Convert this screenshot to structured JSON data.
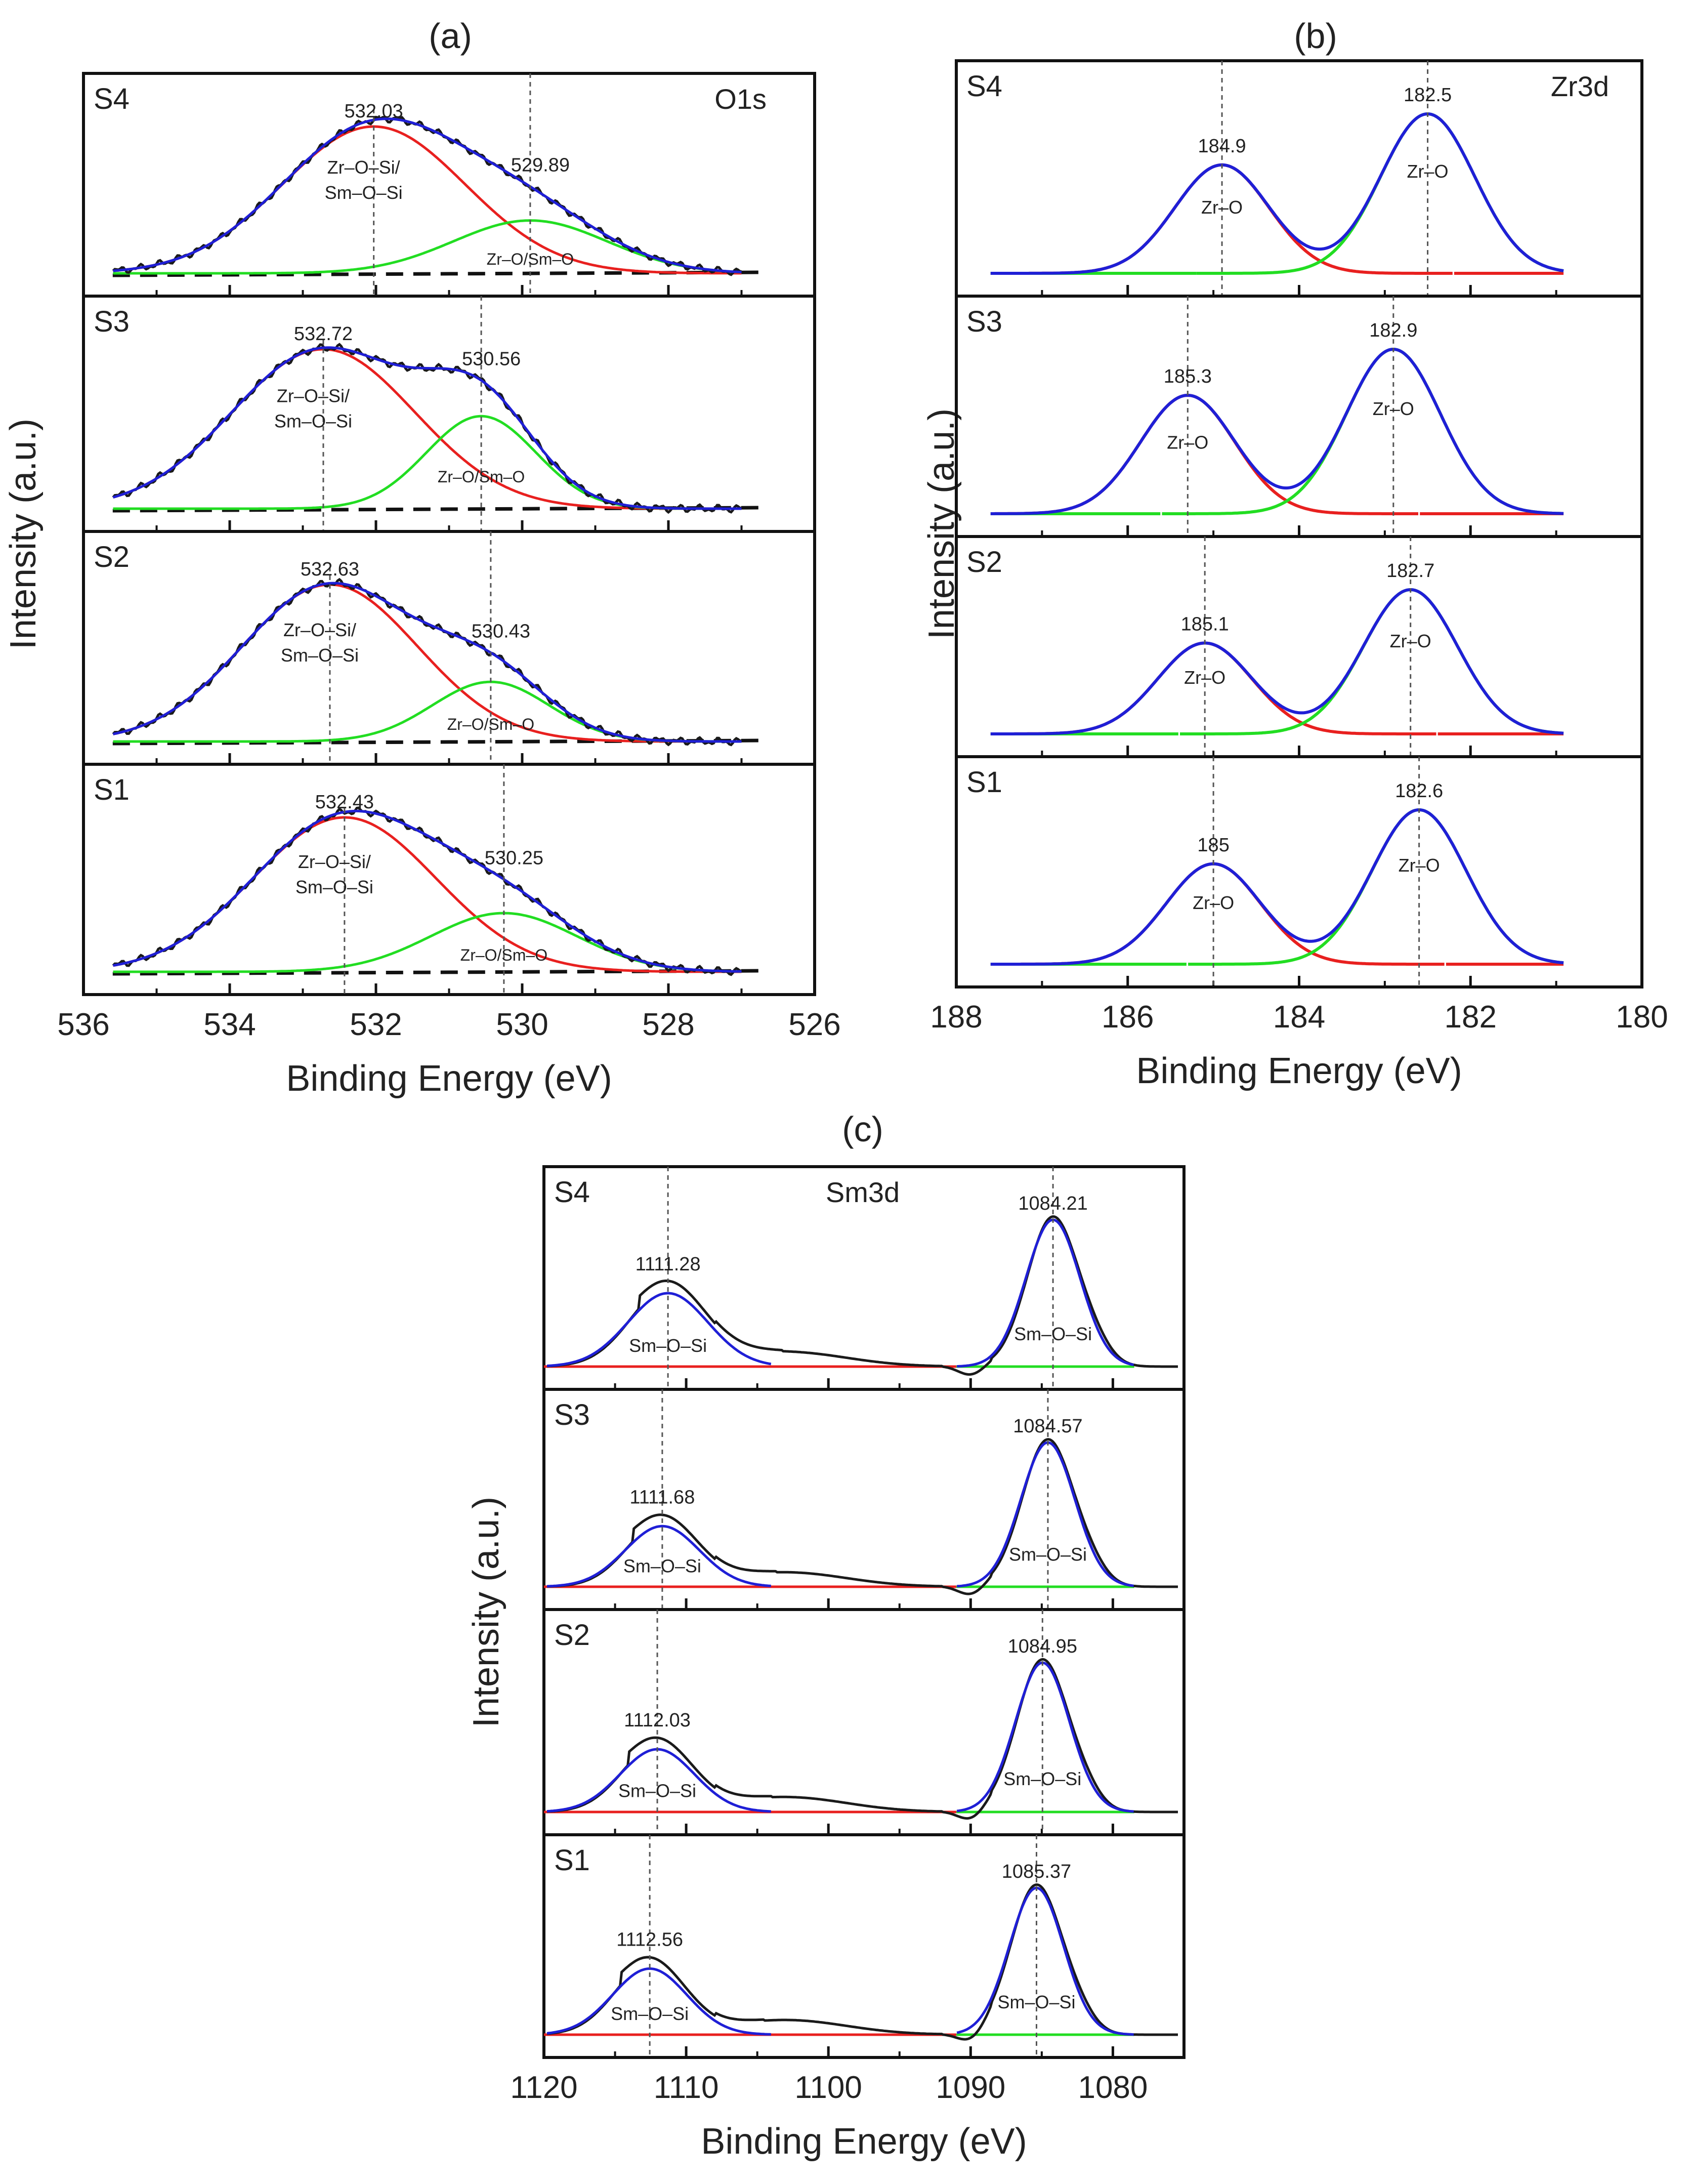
{
  "chart_data": [
    {
      "id": "a",
      "type": "line",
      "panel_label": "(a)",
      "element": "O1s",
      "xlabel": "Binding Energy (eV)",
      "ylabel": "Intensity (a.u.)",
      "xlim": [
        536,
        526
      ],
      "xticks": [
        "536",
        "534",
        "532",
        "530",
        "528",
        "526"
      ],
      "components": [
        "Zr–O–Si/",
        "Sm–O–Si",
        "Zr–O/Sm–O"
      ],
      "series_colors": {
        "experimental": "#1a1a1a",
        "envelope": "#1f1fd6",
        "peak1": "#e8201f",
        "peak2": "#22dd22",
        "baseline": "#111111"
      },
      "samples": [
        {
          "name": "S4",
          "peak1": {
            "center": 532.03,
            "label": "532.03",
            "sigma": 1.25,
            "height": 1.0
          },
          "peak2": {
            "center": 529.89,
            "label": "529.89",
            "sigma": 1.05,
            "height": 0.36
          }
        },
        {
          "name": "S3",
          "peak1": {
            "center": 532.72,
            "label": "532.72",
            "sigma": 1.25,
            "height": 1.0
          },
          "peak2": {
            "center": 530.56,
            "label": "530.56",
            "sigma": 0.75,
            "height": 0.58
          }
        },
        {
          "name": "S2",
          "peak1": {
            "center": 532.63,
            "label": "532.63",
            "sigma": 1.2,
            "height": 1.0
          },
          "peak2": {
            "center": 530.43,
            "label": "530.43",
            "sigma": 0.8,
            "height": 0.38
          }
        },
        {
          "name": "S1",
          "peak1": {
            "center": 532.43,
            "label": "532.43",
            "sigma": 1.25,
            "height": 1.0
          },
          "peak2": {
            "center": 530.25,
            "label": "530.25",
            "sigma": 1.0,
            "height": 0.38
          }
        }
      ]
    },
    {
      "id": "b",
      "type": "line",
      "panel_label": "(b)",
      "element": "Zr3d",
      "xlabel": "Binding Energy (eV)",
      "ylabel": "Intensity (a.u.)",
      "xlim": [
        188,
        180
      ],
      "xticks": [
        "188",
        "186",
        "184",
        "182",
        "180"
      ],
      "component": "Zr–O",
      "series_colors": {
        "envelope": "#1f1fd6",
        "peak_high_be": "#e8201f",
        "peak_low_be": "#22dd22"
      },
      "samples": [
        {
          "name": "S4",
          "peak1": {
            "center": 184.9,
            "label": "184.9",
            "sigma": 0.55,
            "height": 0.68
          },
          "peak2": {
            "center": 182.5,
            "label": "182.5",
            "sigma": 0.55,
            "height": 1.0
          }
        },
        {
          "name": "S3",
          "peak1": {
            "center": 185.3,
            "label": "185.3",
            "sigma": 0.55,
            "height": 0.72
          },
          "peak2": {
            "center": 182.9,
            "label": "182.9",
            "sigma": 0.55,
            "height": 1.0
          }
        },
        {
          "name": "S2",
          "peak1": {
            "center": 185.1,
            "label": "185.1",
            "sigma": 0.55,
            "height": 0.63
          },
          "peak2": {
            "center": 182.7,
            "label": "182.7",
            "sigma": 0.55,
            "height": 1.0
          }
        },
        {
          "name": "S1",
          "peak1": {
            "center": 185.0,
            "label": "185",
            "sigma": 0.55,
            "height": 0.65
          },
          "peak2": {
            "center": 182.6,
            "label": "182.6",
            "sigma": 0.55,
            "height": 1.0
          }
        }
      ]
    },
    {
      "id": "c",
      "type": "line",
      "panel_label": "(c)",
      "element": "Sm3d",
      "xlabel": "Binding Energy (eV)",
      "ylabel": "Intensity (a.u.)",
      "xlim": [
        1120,
        1075
      ],
      "xticks": [
        "1120",
        "1110",
        "1100",
        "1090",
        "1080"
      ],
      "component": "Sm–O–Si",
      "series_colors": {
        "experimental": "#1a1a1a",
        "fit": "#1f1fd6",
        "baseline_left": "#e8201f",
        "baseline_right": "#22dd22"
      },
      "samples": [
        {
          "name": "S4",
          "peak1": {
            "center": 1111.28,
            "label": "1111.28",
            "sigma": 2.8,
            "height": 0.5
          },
          "peak2": {
            "center": 1084.21,
            "label": "1084.21",
            "sigma": 1.9,
            "height": 1.0
          }
        },
        {
          "name": "S3",
          "peak1": {
            "center": 1111.68,
            "label": "1111.68",
            "sigma": 2.6,
            "height": 0.42
          },
          "peak2": {
            "center": 1084.57,
            "label": "1084.57",
            "sigma": 1.9,
            "height": 1.0
          }
        },
        {
          "name": "S2",
          "peak1": {
            "center": 1112.03,
            "label": "1112.03",
            "sigma": 2.6,
            "height": 0.42
          },
          "peak2": {
            "center": 1084.95,
            "label": "1084.95",
            "sigma": 1.9,
            "height": 1.0
          }
        },
        {
          "name": "S1",
          "peak1": {
            "center": 1112.56,
            "label": "1112.56",
            "sigma": 2.6,
            "height": 0.45
          },
          "peak2": {
            "center": 1085.37,
            "label": "1085.37",
            "sigma": 1.9,
            "height": 1.0
          }
        }
      ]
    }
  ]
}
